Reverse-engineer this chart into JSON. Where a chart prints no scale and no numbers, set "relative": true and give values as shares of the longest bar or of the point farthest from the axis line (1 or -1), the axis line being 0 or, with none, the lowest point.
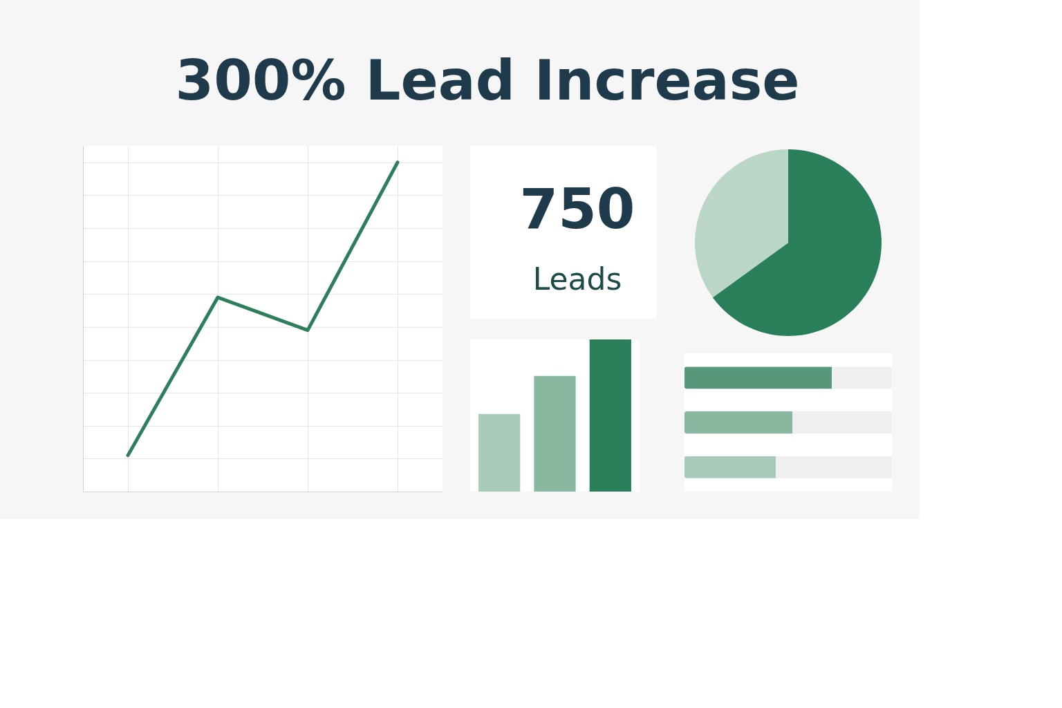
{
  "chart_data": [
    {
      "type": "line",
      "title": "300% Lead Increase",
      "relative": true,
      "grid": true,
      "categories": [
        null,
        null,
        null,
        null
      ],
      "series": [
        {
          "color": "#2e7d5b",
          "values": [
            0.11,
            0.59,
            0.49,
            1.0
          ]
        }
      ]
    },
    {
      "type": "other",
      "annotations": [
        "750",
        "Leads"
      ]
    },
    {
      "type": "bar",
      "relative": true,
      "categories": [
        null,
        null,
        null
      ],
      "values": [
        0.51,
        0.76,
        1.0
      ],
      "colors": [
        "#a8cbb9",
        "#88b9a0",
        "#2a7f5b"
      ]
    },
    {
      "type": "pie",
      "categories": [
        null,
        null
      ],
      "values": [
        65,
        35
      ],
      "colors": [
        "#2a7f5b",
        "#b9d6c6"
      ]
    },
    {
      "type": "bar",
      "orientation": "horizontal",
      "stacked": true,
      "relative": true,
      "categories": [
        null,
        null,
        null
      ],
      "series": [
        {
          "colors": [
            "#57987a",
            "#88b9a0",
            "#a8cbb9"
          ],
          "values": [
            0.71,
            0.52,
            0.44
          ]
        },
        {
          "colors": [
            "#efefef",
            "#efefef",
            "#efefef"
          ],
          "values": [
            0.29,
            0.48,
            0.56
          ]
        }
      ]
    }
  ]
}
